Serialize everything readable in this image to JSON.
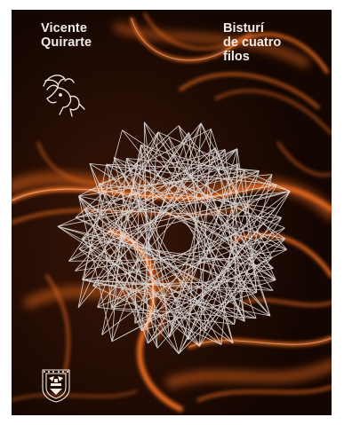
{
  "cover": {
    "author_lines": [
      "Vicente",
      "Quirarte"
    ],
    "title_lines": [
      "Bisturí",
      "de cuatro",
      "filos"
    ],
    "logo": "pegasus-emblem-icon",
    "seal": "unam-seal-icon",
    "colors": {
      "background": "#1d0a04",
      "light_trails": "#e2661f",
      "text": "#f3ede8",
      "star_lines": "#e8e6e6"
    }
  }
}
